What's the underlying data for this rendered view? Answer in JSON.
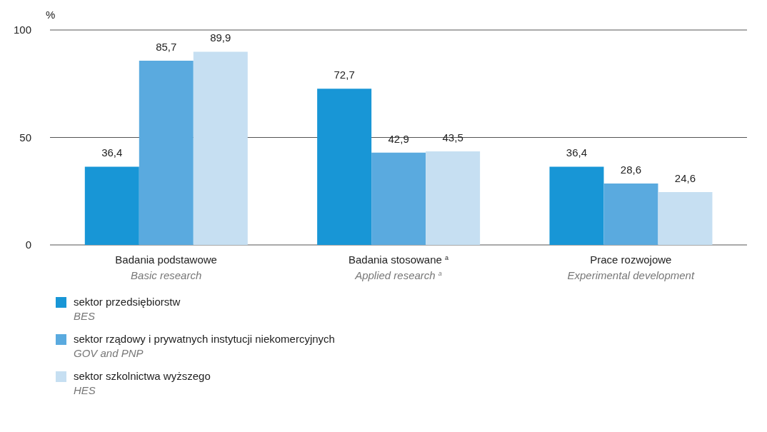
{
  "chart_data": {
    "type": "bar",
    "ylabel": "%",
    "categories": [
      "Badania podstawowe\nBasic research",
      "Badania stosowane $^{a}$\nApplied research $^{a}$",
      "Prace rozwojowe\nExperimental development"
    ],
    "series": [
      {
        "name": "sektor przedsiębiorstw\nBES",
        "color": "#1896d6",
        "values": [
          36.4,
          72.7,
          36.4
        ],
        "value_labels": [
          "36,4",
          "72,7",
          "36,4"
        ]
      },
      {
        "name": "sektor rządowy i prywatnych instytucji niekomercyjnych\nGOV and PNP",
        "color": "#5aaadf",
        "values": [
          85.7,
          42.9,
          28.6
        ],
        "value_labels": [
          "85,7",
          "42,9",
          "28,6"
        ]
      },
      {
        "name": "sektor szkolnictwa wyższego\nHES",
        "color": "#c6dff2",
        "values": [
          89.9,
          43.5,
          24.6
        ],
        "value_labels": [
          "89,9",
          "43,5",
          "24,6"
        ]
      }
    ],
    "ylim": [
      0,
      100
    ],
    "yticks": [
      0,
      50,
      100
    ],
    "grid": "y",
    "legend": "bottom left"
  }
}
